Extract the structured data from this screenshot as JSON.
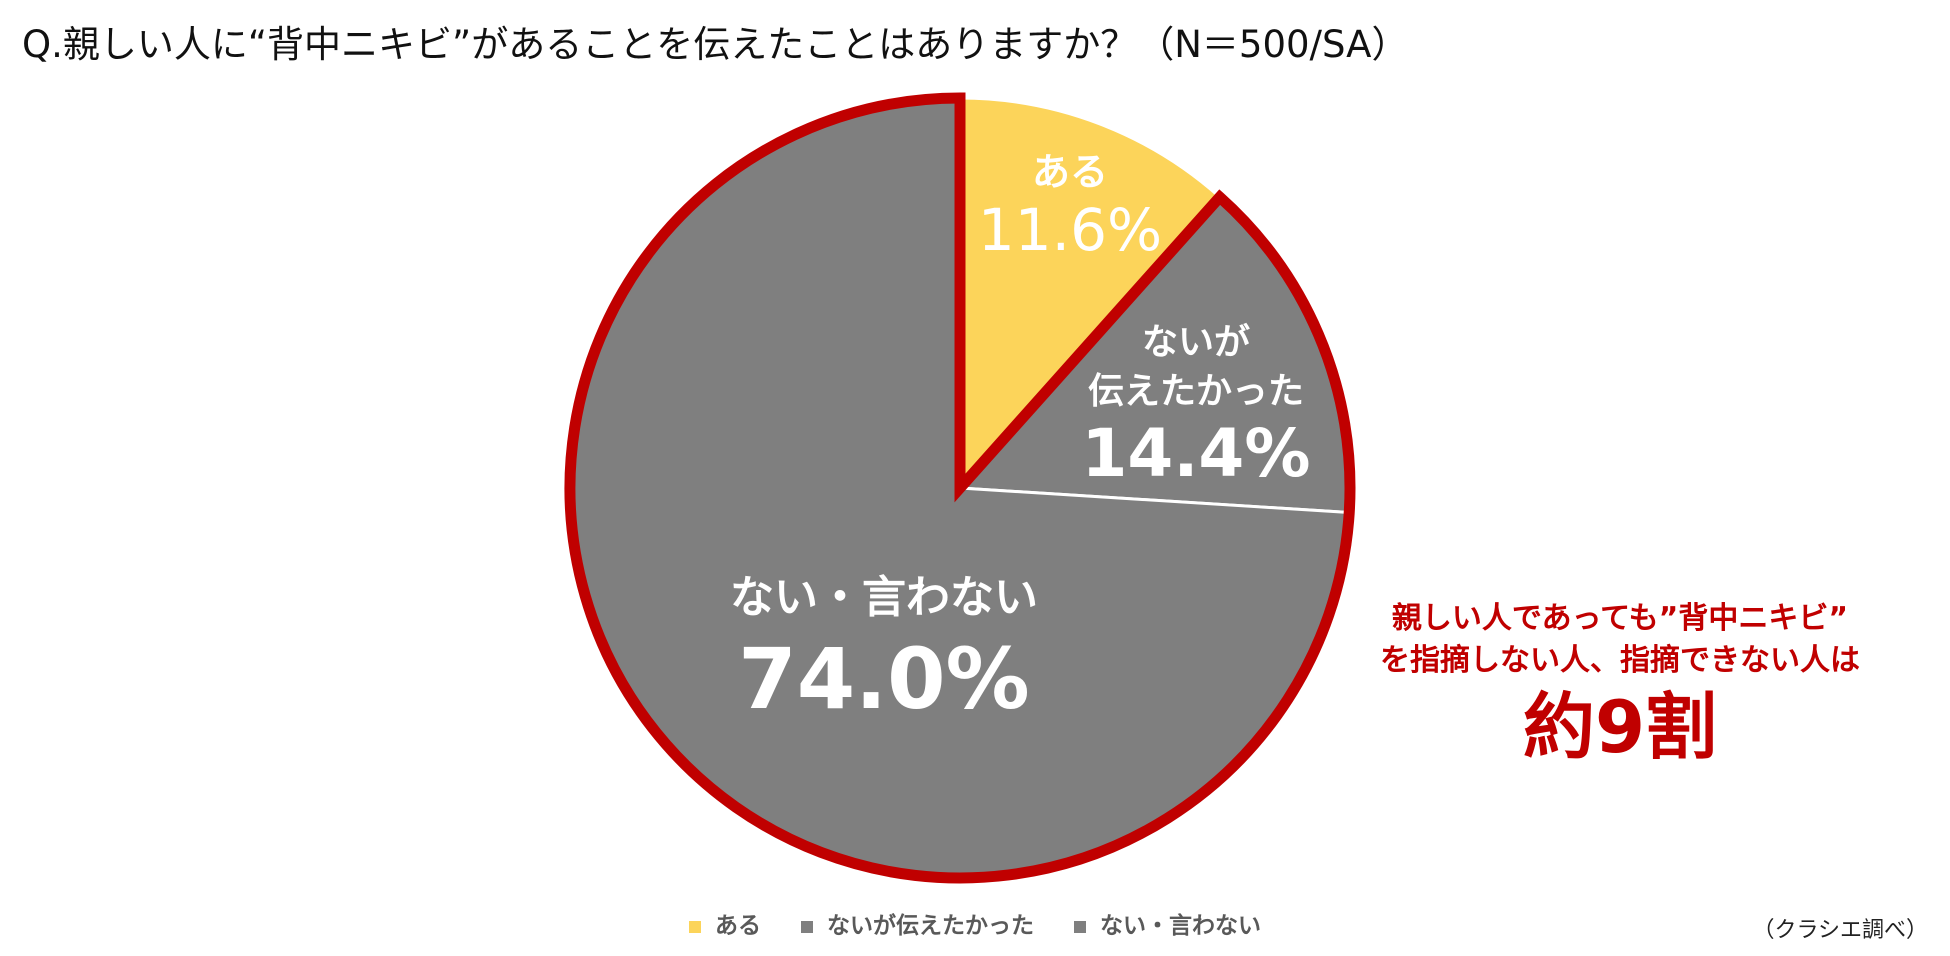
{
  "question": "Q.親しい人に“背中ニキビ”があることを伝えたことはありますか？（N＝500/SA）",
  "chart_data": {
    "type": "pie",
    "title": "Q.親しい人に“背中ニキビ”があることを伝えたことはありますか？（N＝500/SA）",
    "slices": [
      {
        "label": "ある",
        "value": 11.6,
        "display": "11.6%",
        "color": "#fcd45a"
      },
      {
        "label": "ないが伝えたかった",
        "label_lines": [
          "ないが",
          "伝えたかった"
        ],
        "value": 14.4,
        "display": "14.4%",
        "color": "#7f7f7f"
      },
      {
        "label": "ない・言わない",
        "value": 74.0,
        "display": "74.0%",
        "color": "#7f7f7f"
      }
    ],
    "highlight_color": "#c00000",
    "legend_position": "bottom"
  },
  "callout": {
    "line1": "親しい人であっても”背中ニキビ”",
    "line2": "を指摘しない人、指摘できない人は",
    "big": "約9割"
  },
  "legend": [
    {
      "label": "ある",
      "color": "#fcd45a"
    },
    {
      "label": "ないが伝えたかった",
      "color": "#7f7f7f"
    },
    {
      "label": "ない・言わない",
      "color": "#7f7f7f"
    }
  ],
  "source": "（クラシエ調べ）"
}
